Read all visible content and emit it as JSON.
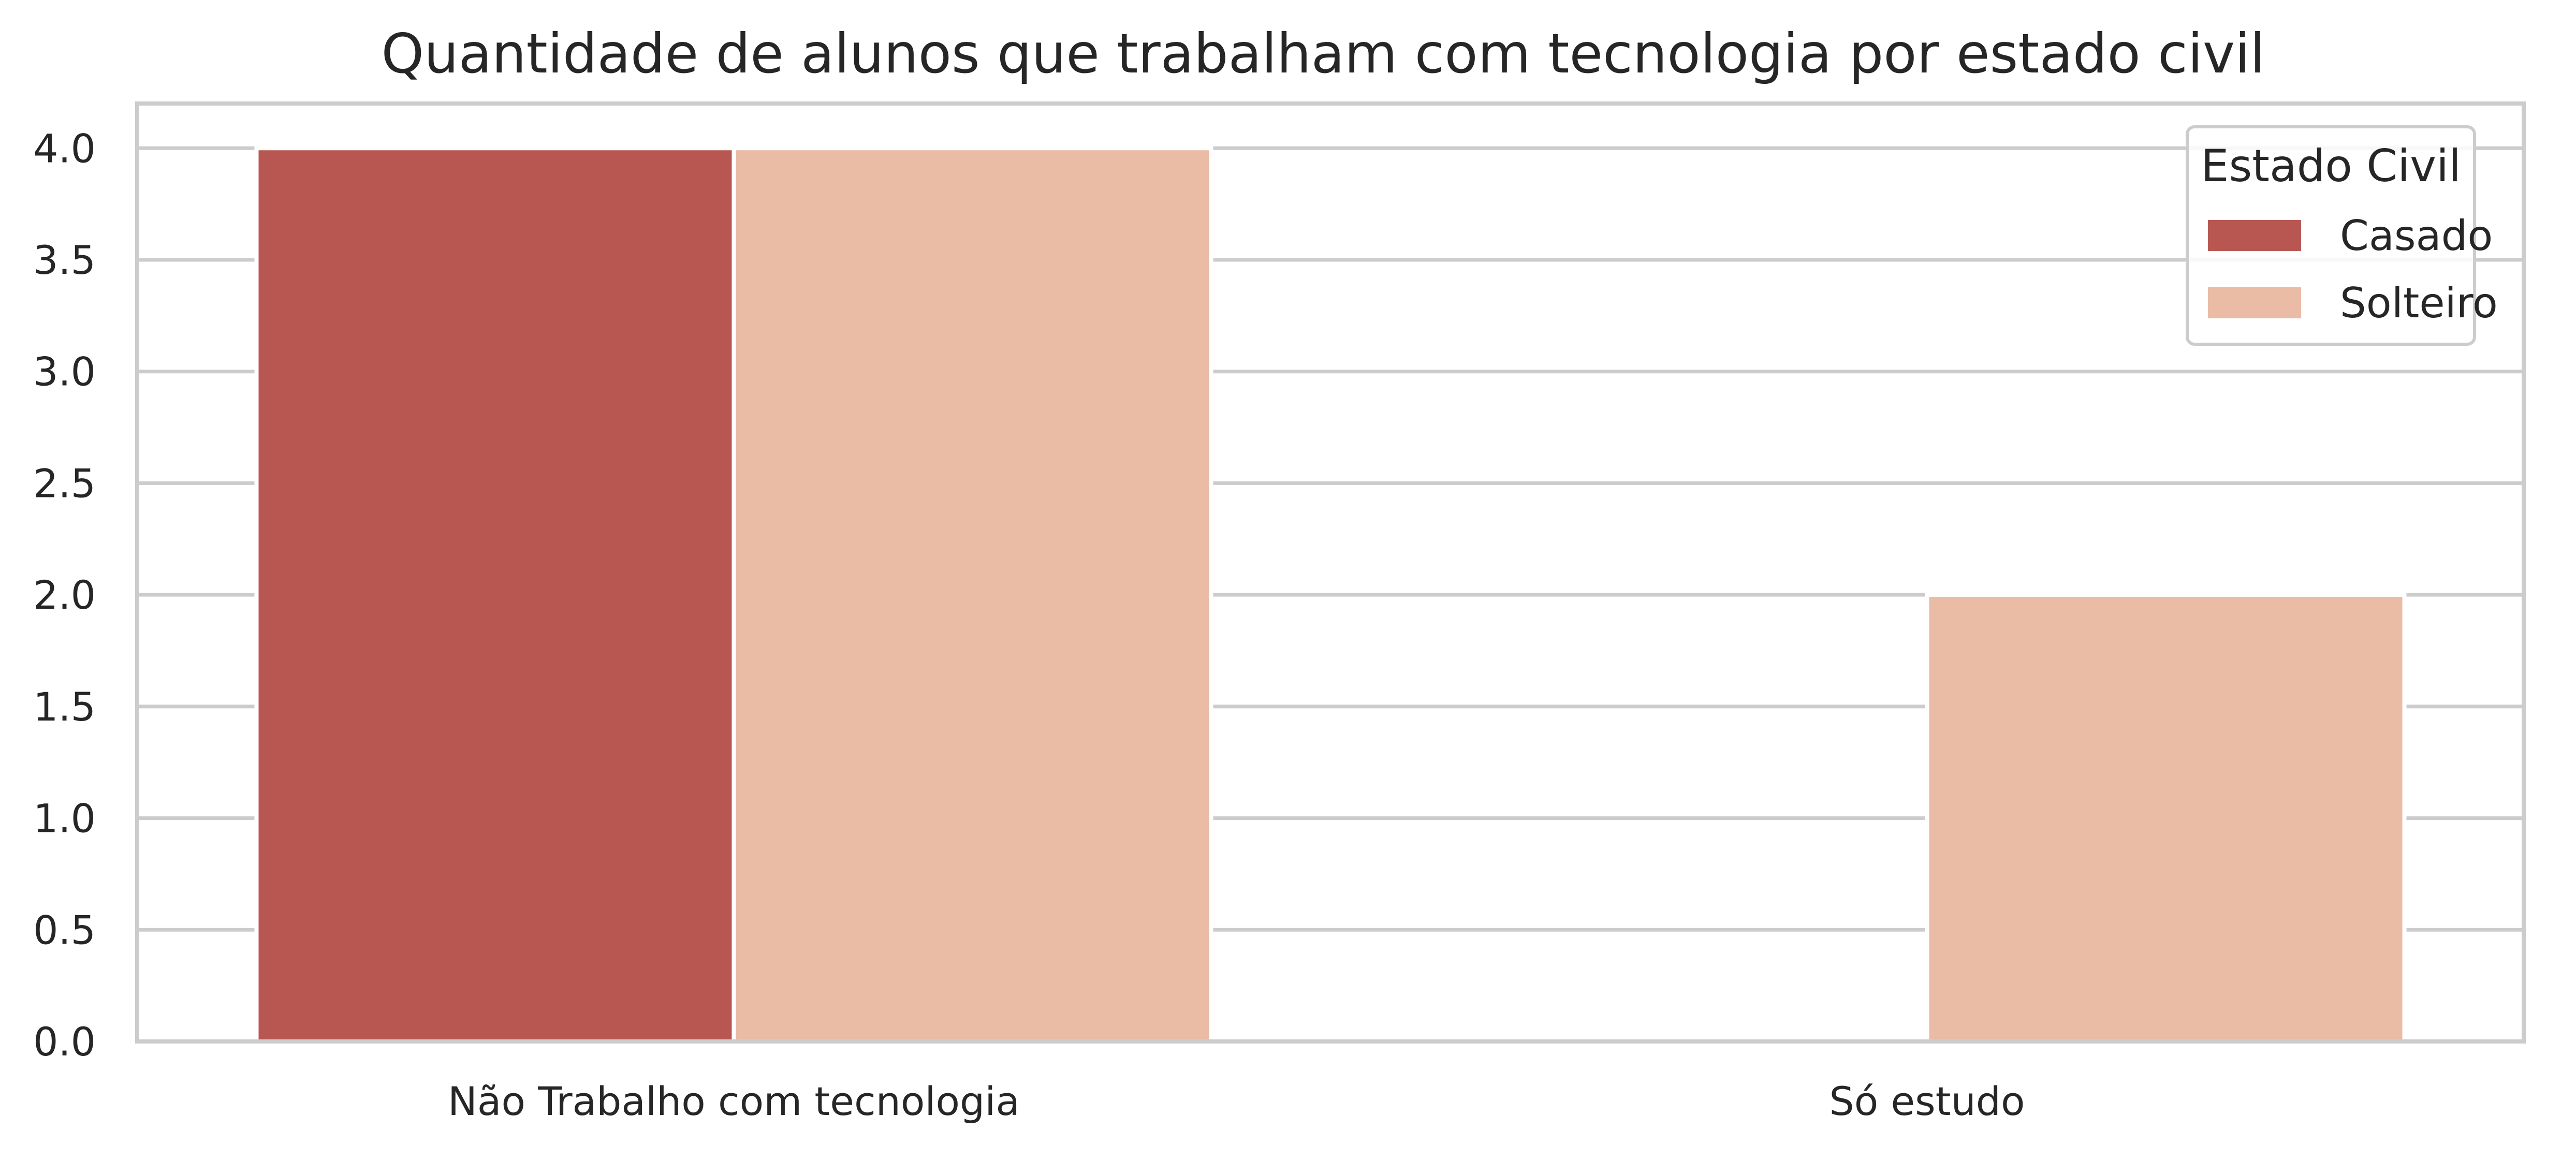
{
  "chart_data": {
    "type": "bar",
    "title": "Quantidade de alunos que trabalham com tecnologia por estado civil",
    "xlabel": "",
    "ylabel": "",
    "categories": [
      "Não Trabalho com tecnologia",
      "Só estudo"
    ],
    "series": [
      {
        "name": "Casado",
        "values": [
          4,
          0
        ],
        "color": "#b85751"
      },
      {
        "name": "Solteiro",
        "values": [
          4,
          2
        ],
        "color": "#eabba5"
      }
    ],
    "ylim": [
      0,
      4.2
    ],
    "yticks": [
      "0.0",
      "0.5",
      "1.0",
      "1.5",
      "2.0",
      "2.5",
      "3.0",
      "3.5",
      "4.0"
    ],
    "grid": true,
    "legend": {
      "title": "Estado Civil",
      "placement": "top-right"
    },
    "colors": {
      "grid": "#cccccc",
      "frame": "#cccccc",
      "text": "#262626"
    }
  }
}
